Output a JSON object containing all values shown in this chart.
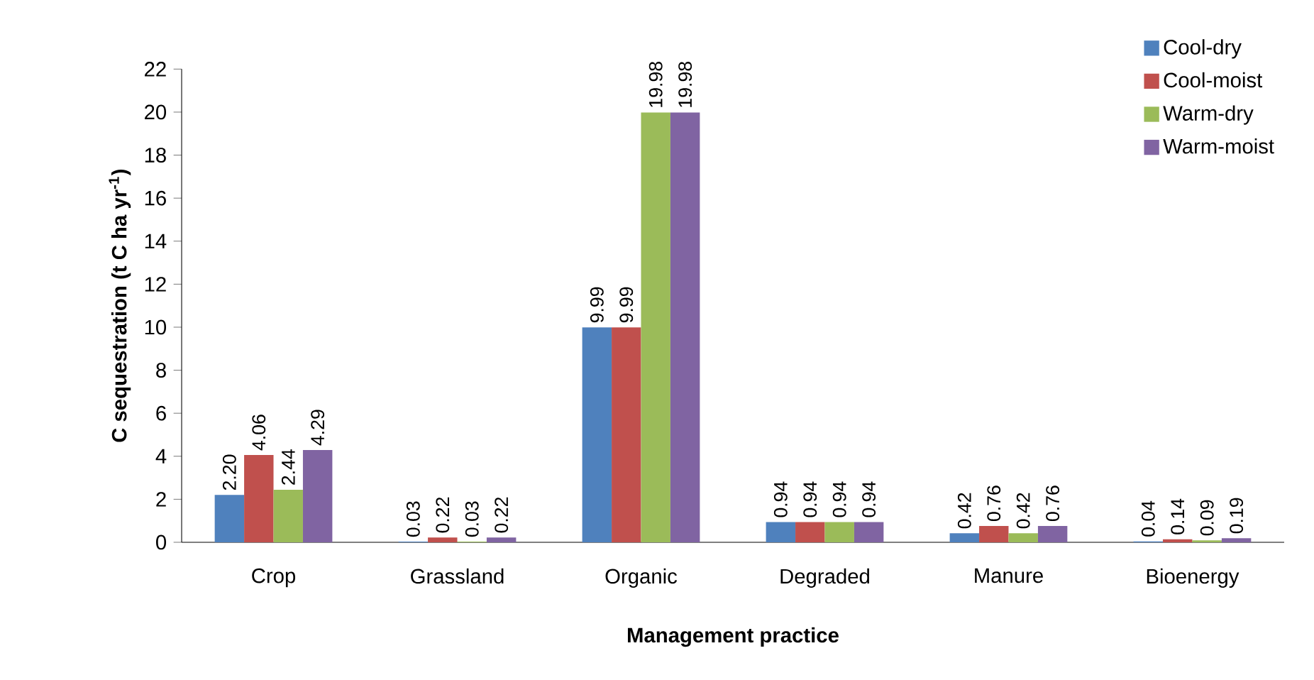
{
  "chart_data": {
    "type": "bar",
    "xlabel": "Management practice",
    "ylabel": "C sequestration (t C ha yr$^{-1}$)",
    "categories": [
      "Crop",
      "Grassland",
      "Organic",
      "Degraded",
      "Manure",
      "Bioenergy"
    ],
    "series": [
      {
        "name": "Cool-dry",
        "color": "#4f81bd",
        "values": [
          2.2,
          0.03,
          9.99,
          0.94,
          0.42,
          0.04
        ],
        "value_labels": [
          "2.20",
          "0.03",
          "9.99",
          "0.94",
          "0.42",
          "0.04"
        ]
      },
      {
        "name": "Cool-moist",
        "color": "#c0504d",
        "values": [
          4.06,
          0.22,
          9.99,
          0.94,
          0.76,
          0.14
        ],
        "value_labels": [
          "4.06",
          "0.22",
          "9.99",
          "0.94",
          "0.76",
          "0.14"
        ]
      },
      {
        "name": "Warm-dry",
        "color": "#9bbb59",
        "values": [
          2.44,
          0.03,
          19.98,
          0.94,
          0.42,
          0.09
        ],
        "value_labels": [
          "2.44",
          "0.03",
          "19.98",
          "0.94",
          "0.42",
          "0.09"
        ]
      },
      {
        "name": "Warm-moist",
        "color": "#8064a2",
        "values": [
          4.29,
          0.22,
          19.98,
          0.94,
          0.76,
          0.19
        ],
        "value_labels": [
          "4.29",
          "0.22",
          "19.98",
          "0.94",
          "0.76",
          "0.19"
        ]
      }
    ],
    "ylim": [
      0,
      22
    ],
    "yticks": [
      0,
      2,
      4,
      6,
      8,
      10,
      12,
      14,
      16,
      18,
      20,
      22
    ],
    "legend": "top right"
  }
}
